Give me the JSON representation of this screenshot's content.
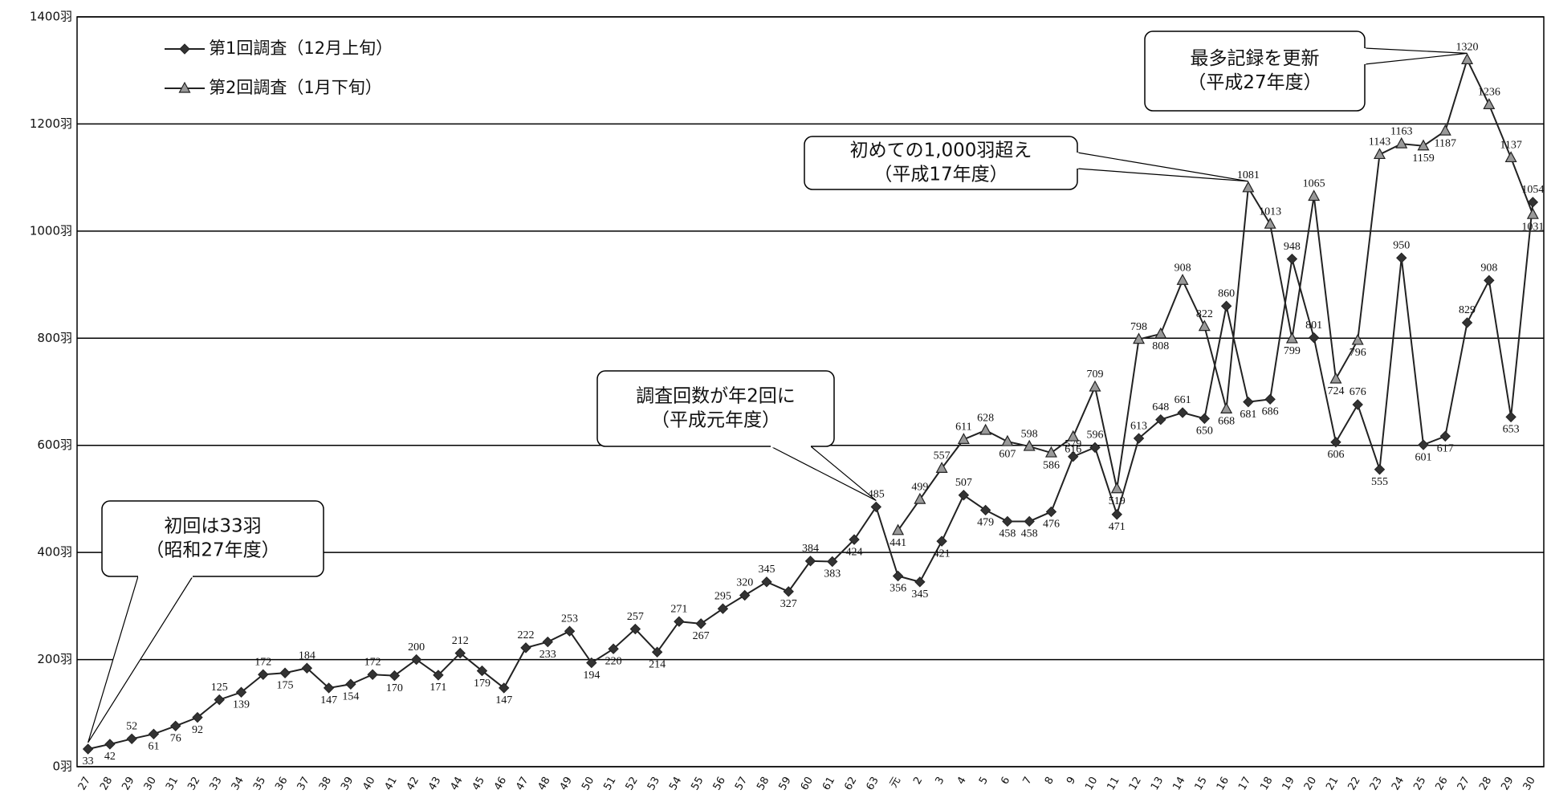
{
  "chart_data": {
    "type": "line",
    "categories": [
      "27",
      "28",
      "29",
      "30",
      "31",
      "32",
      "33",
      "34",
      "35",
      "36",
      "37",
      "38",
      "39",
      "40",
      "41",
      "42",
      "43",
      "44",
      "45",
      "46",
      "47",
      "48",
      "49",
      "50",
      "51",
      "52",
      "53",
      "54",
      "55",
      "56",
      "57",
      "58",
      "59",
      "60",
      "61",
      "62",
      "63",
      "元",
      "2",
      "3",
      "4",
      "5",
      "6",
      "7",
      "8",
      "9",
      "10",
      "11",
      "12",
      "13",
      "14",
      "15",
      "16",
      "17",
      "18",
      "19",
      "20",
      "21",
      "22",
      "23",
      "24",
      "25",
      "26",
      "27",
      "28",
      "29",
      "30"
    ],
    "series": [
      {
        "name": "第1回調査（12月上旬）",
        "color": "#222222",
        "marker": "diamond",
        "values": [
          33,
          42,
          52,
          61,
          76,
          92,
          125,
          139,
          172,
          175,
          184,
          147,
          154,
          172,
          170,
          200,
          171,
          212,
          179,
          147,
          222,
          233,
          253,
          194,
          220,
          257,
          214,
          271,
          267,
          295,
          320,
          345,
          327,
          384,
          383,
          424,
          485,
          356,
          345,
          421,
          507,
          479,
          458,
          458,
          476,
          579,
          596,
          471,
          613,
          648,
          661,
          650,
          860,
          681,
          686,
          948,
          801,
          606,
          676,
          555,
          950,
          601,
          617,
          829,
          908,
          653,
          1054
        ]
      },
      {
        "name": "第2回調査（1月下旬）",
        "color": "#222222",
        "marker": "triangle",
        "values": [
          null,
          null,
          null,
          null,
          null,
          null,
          null,
          null,
          null,
          null,
          null,
          null,
          null,
          null,
          null,
          null,
          null,
          null,
          null,
          null,
          null,
          null,
          null,
          null,
          null,
          null,
          null,
          null,
          null,
          null,
          null,
          null,
          null,
          null,
          null,
          null,
          null,
          441,
          499,
          557,
          611,
          628,
          607,
          598,
          586,
          616,
          709,
          519,
          798,
          808,
          908,
          822,
          668,
          1081,
          1013,
          799,
          1065,
          724,
          796,
          1143,
          1163,
          1159,
          1187,
          1320,
          1236,
          1137,
          1031
        ]
      }
    ],
    "ylim": [
      0,
      1400
    ],
    "yticks": [
      {
        "value": 0,
        "label": "0羽"
      },
      {
        "value": 200,
        "label": "200羽"
      },
      {
        "value": 400,
        "label": "400羽"
      },
      {
        "value": 600,
        "label": "600羽"
      },
      {
        "value": 800,
        "label": "800羽"
      },
      {
        "value": 1000,
        "label": "1000羽"
      },
      {
        "value": 1200,
        "label": "1200羽"
      },
      {
        "value": 1400,
        "label": "1400羽"
      }
    ],
    "grid": true,
    "legend": "top-left",
    "annotations": [
      {
        "lines": [
          "初回は33羽",
          "（昭和27年度）"
        ]
      },
      {
        "lines": [
          "調査回数が年2回に",
          "（平成元年度）"
        ]
      },
      {
        "lines": [
          "初めての1,000羽超え",
          "（平成17年度）"
        ]
      },
      {
        "lines": [
          "最多記録を更新",
          "（平成27年度）"
        ]
      }
    ]
  }
}
